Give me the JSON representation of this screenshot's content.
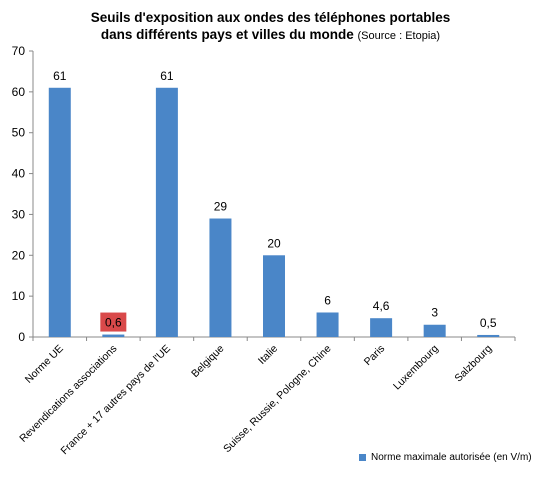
{
  "chart_data": {
    "type": "bar",
    "title_line1": "Seuils d'exposition aux ondes des téléphones portables",
    "title_line2": "dans différents pays et villes du monde",
    "title_source": "(Source : Etopia)",
    "categories": [
      "Norme UE",
      "Revendications associations",
      "France + 17 autres pays de l'UE",
      "Belgique",
      "Italie",
      "Suisse, Russie, Pologne, Chine",
      "Paris",
      "Luxembourg",
      "Salzbourg"
    ],
    "series": [
      {
        "name": "Norme maximale autorisée (en V/m)",
        "values": [
          61,
          0.6,
          61,
          29,
          20,
          6,
          4.6,
          3,
          0.5
        ],
        "labels": [
          "61",
          "0,6",
          "61",
          "29",
          "20",
          "6",
          "4,6",
          "3",
          "0,5"
        ]
      }
    ],
    "highlighted_label_index": 1,
    "ylim": [
      0,
      70
    ],
    "yticks": [
      0,
      10,
      20,
      30,
      40,
      50,
      60,
      70
    ],
    "grid": false,
    "legend_position": "bottom-right",
    "colors": {
      "bar": "#4a86c8",
      "highlight_label_bg": "#d9494a",
      "axis": "#888888"
    }
  }
}
